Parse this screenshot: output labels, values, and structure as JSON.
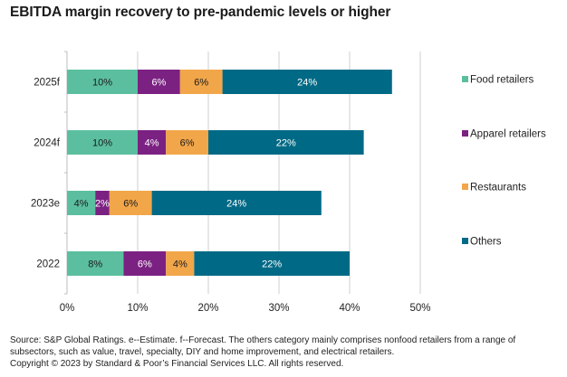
{
  "chart_data": {
    "type": "bar",
    "orientation": "horizontal",
    "stacked": true,
    "title": "EBITDA margin recovery to pre-pandemic levels or higher",
    "xlabel": "",
    "ylabel": "",
    "categories": [
      "2025f",
      "2024f",
      "2023e",
      "2022"
    ],
    "series": [
      {
        "name": "Food retailers",
        "color": "#5bbf9f",
        "label_color": "#1a1a1a",
        "values": [
          10,
          10,
          4,
          8
        ]
      },
      {
        "name": "Apparel retailers",
        "color": "#7b2182",
        "label_color": "#ffffff",
        "values": [
          6,
          4,
          2,
          6
        ]
      },
      {
        "name": "Restaurants",
        "color": "#f2a64a",
        "label_color": "#1a1a1a",
        "values": [
          6,
          6,
          6,
          4
        ]
      },
      {
        "name": "Others",
        "color": "#006a86",
        "label_color": "#ffffff",
        "values": [
          24,
          22,
          24,
          22
        ]
      }
    ],
    "xlim": [
      0,
      50
    ],
    "xticks": [
      "0%",
      "10%",
      "20%",
      "30%",
      "40%",
      "50%"
    ],
    "xtick_values": [
      0,
      10,
      20,
      30,
      40,
      50
    ],
    "value_suffix": "%",
    "grid": true,
    "legend_position": "right"
  },
  "footnotes": {
    "source": "Source: S&P Global Ratings. e--Estimate. f--Forecast. The others category mainly comprises nonfood retailers from a range of subsectors, such as value, travel, specialty, DIY and home improvement, and electrical retailers.",
    "copyright": "Copyright © 2023 by Standard & Poor’s Financial Services LLC. All rights reserved."
  }
}
